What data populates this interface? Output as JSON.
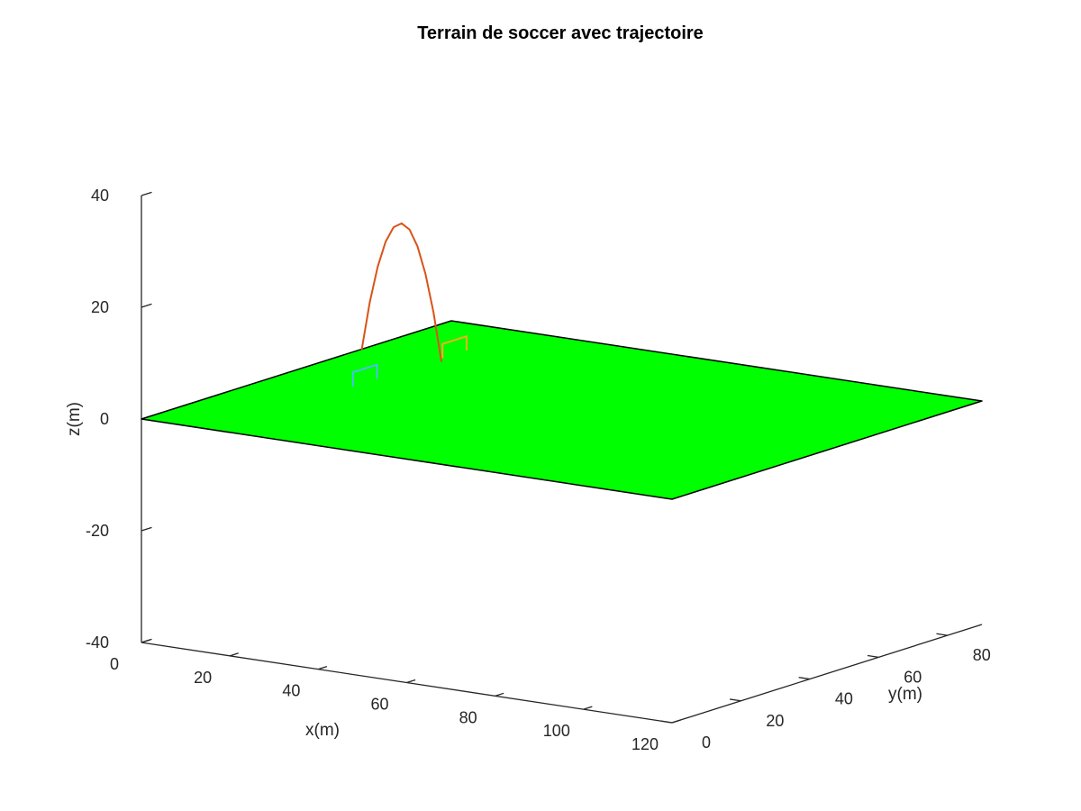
{
  "chart_data": {
    "type": "surface3d",
    "title": "Terrain de soccer avec trajectoire",
    "xlabel": "x(m)",
    "ylabel": "y(m)",
    "zlabel": "z(m)",
    "xlim": [
      0,
      120
    ],
    "ylim": [
      0,
      90
    ],
    "zlim": [
      -40,
      40
    ],
    "xticks": [
      0,
      20,
      40,
      60,
      80,
      100,
      120
    ],
    "yticks": [
      0,
      20,
      40,
      60,
      80
    ],
    "zticks": [
      -40,
      -20,
      0,
      20,
      40
    ],
    "field": {
      "color": "#00ff00",
      "edge_color": "#000000",
      "z": 0,
      "corners": [
        [
          0,
          0
        ],
        [
          120,
          0
        ],
        [
          120,
          90
        ],
        [
          0,
          90
        ]
      ]
    },
    "series": [
      {
        "color": "#d95319",
        "x": [
          0,
          1.8,
          3.6,
          5.4,
          7.2,
          9.0,
          10.8,
          12.6,
          14.4,
          16.2,
          18.0
        ],
        "y": [
          64,
          64,
          64,
          64,
          64,
          64,
          64,
          64,
          64,
          64,
          64
        ],
        "z": [
          0,
          8.6,
          15.2,
          19.9,
          22.7,
          23.6,
          22.7,
          19.9,
          15.2,
          8.6,
          0
        ]
      },
      {
        "color": "#edb120",
        "x": [
          16.3,
          16.3,
          16.3,
          16.3
        ],
        "y": [
          66.5,
          66.5,
          73.5,
          73.5
        ],
        "z": [
          0,
          2.4,
          2.4,
          0
        ]
      },
      {
        "color": "#4dbeee",
        "x": [
          16.3,
          16.3,
          16.3,
          16.3
        ],
        "y": [
          40.5,
          40.5,
          47.5,
          47.5
        ],
        "z": [
          0,
          2.4,
          2.4,
          0
        ]
      }
    ]
  }
}
